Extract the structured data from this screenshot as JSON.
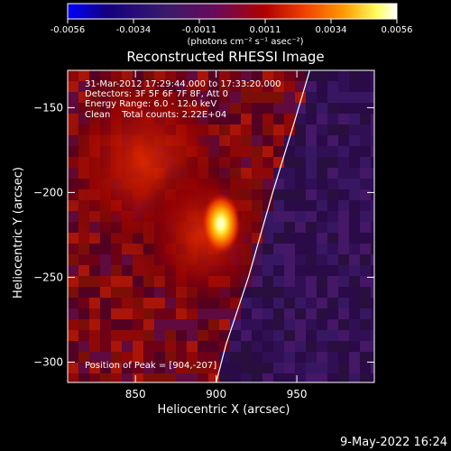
{
  "chart_data": {
    "type": "heatmap",
    "title": "Reconstructed RHESSI Image",
    "xlabel": "Heliocentric X (arcsec)",
    "ylabel": "Heliocentric Y (arcsec)",
    "xlim": [
      808,
      998
    ],
    "ylim": [
      -312,
      -128
    ],
    "x_ticks": [
      850,
      900,
      950
    ],
    "y_ticks": [
      -300,
      -250,
      -200,
      -150
    ],
    "colorbar": {
      "min": -0.0056,
      "max": 0.0056,
      "ticks": [
        "-0.0056",
        "-0.0034",
        "-0.0011",
        "0.0011",
        "0.0034",
        "0.0056"
      ],
      "label": "(photons cm⁻² s⁻¹ asec⁻²)",
      "colormap": [
        "#0000ff",
        "#140080",
        "#3a1a6a",
        "#6a0a5a",
        "#b00000",
        "#f04000",
        "#ff9a00",
        "#ffff60",
        "#ffffff"
      ]
    },
    "annotations": [
      "31-Mar-2012 17:29:44.000 to 17:33:20.000",
      "Detectors: 3F 5F 6F 7F 8F, Att 0",
      "Energy Range: 6.0 - 12.0 keV",
      "Clean    Total counts: 2.22E+04"
    ],
    "peak_label": "Position of Peak = [904,-207]",
    "peak": {
      "x": 904,
      "y": -207
    },
    "limb_curve_xy": [
      [
        958,
        -128
      ],
      [
        948,
        -160
      ],
      [
        935,
        -200
      ],
      [
        920,
        -250
      ],
      [
        906,
        -290
      ],
      [
        900,
        -312
      ]
    ]
  },
  "footer": {
    "timestamp": "9-May-2022 16:24"
  }
}
